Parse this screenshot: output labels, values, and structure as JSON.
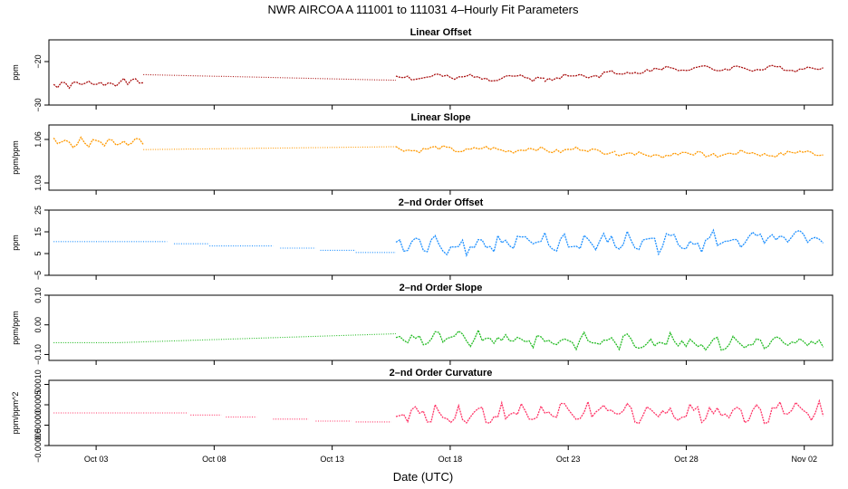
{
  "title": "NWR   AIRCOA A   111001 to 111031   4–Hourly Fit Parameters",
  "xlabel": "Date (UTC)",
  "x_ticks": [
    "Oct 03",
    "Oct 08",
    "Oct 13",
    "Oct 18",
    "Oct 23",
    "Oct 28",
    "Nov 02"
  ],
  "chart_data": [
    {
      "type": "line",
      "title": "Linear Offset",
      "ylabel": "ppm",
      "color": "#aa1111",
      "ylim": [
        -30,
        -15
      ],
      "yticks": [
        {
          "value": -30,
          "label": "−30"
        },
        {
          "value": -20,
          "label": "−20"
        }
      ],
      "x_start": "Oct 01",
      "step_days": 0.1667,
      "segments": [
        {
          "start_day": 0.2,
          "end_day": 4.0,
          "kind": "noisy",
          "start": -25.5,
          "end": -24.5,
          "base": -25.0,
          "amp": 1.0,
          "period": 0.25,
          "seed": 1
        },
        {
          "start_day": 4.0,
          "end_day": 14.7,
          "kind": "trend",
          "start": -23.0,
          "end": -24.3
        },
        {
          "start_day": 14.7,
          "end_day": 21.0,
          "kind": "noisy",
          "start": -24.0,
          "end": -24.0,
          "base": -23.6,
          "amp": 1.1,
          "period": 0.8,
          "seed": 2
        },
        {
          "start_day": 21.0,
          "end_day": 26.0,
          "kind": "noisy",
          "start": -24.0,
          "end": -22.0,
          "base": -23.0,
          "amp": 1.0,
          "period": 0.9,
          "seed": 3
        },
        {
          "start_day": 26.0,
          "end_day": 32.8,
          "kind": "noisy",
          "start": -21.5,
          "end": -21.5,
          "base": -21.6,
          "amp": 0.9,
          "period": 0.8,
          "seed": 4
        }
      ]
    },
    {
      "type": "line",
      "title": "Linear Slope",
      "ylabel": "ppm/ppm",
      "color": "#ff9900",
      "ylim": [
        1.025,
        1.07
      ],
      "yticks": [
        {
          "value": 1.03,
          "label": "1.03"
        },
        {
          "value": 1.06,
          "label": "1.06"
        }
      ],
      "x_start": "Oct 01",
      "step_days": 0.1667,
      "segments": [
        {
          "start_day": 0.2,
          "end_day": 4.0,
          "kind": "noisy",
          "start": 1.058,
          "end": 1.058,
          "base": 1.058,
          "amp": 0.004,
          "period": 0.3,
          "seed": 5
        },
        {
          "start_day": 4.0,
          "end_day": 14.7,
          "kind": "trend",
          "start": 1.053,
          "end": 1.055
        },
        {
          "start_day": 14.7,
          "end_day": 24.0,
          "kind": "noisy",
          "start": 1.054,
          "end": 1.053,
          "base": 1.053,
          "amp": 0.003,
          "period": 1.0,
          "seed": 6
        },
        {
          "start_day": 24.0,
          "end_day": 32.8,
          "kind": "noisy",
          "start": 1.051,
          "end": 1.052,
          "base": 1.05,
          "amp": 0.003,
          "period": 1.2,
          "seed": 7
        }
      ]
    },
    {
      "type": "line",
      "title": "2–nd Order Offset",
      "ylabel": "ppm",
      "color": "#1e90ff",
      "ylim": [
        -5,
        25
      ],
      "yticks": [
        {
          "value": -5,
          "label": "−5"
        },
        {
          "value": 5,
          "label": "5"
        },
        {
          "value": 15,
          "label": "15"
        },
        {
          "value": 25,
          "label": "25"
        }
      ],
      "x_start": "Oct 01",
      "step_days": 0.1667,
      "segments": [
        {
          "start_day": 0.2,
          "end_day": 5.0,
          "kind": "flat",
          "start": 10.5,
          "end": 10.5
        },
        {
          "start_day": 5.3,
          "end_day": 6.8,
          "kind": "flat",
          "start": 9.5,
          "end": 9.5
        },
        {
          "start_day": 6.8,
          "end_day": 9.5,
          "kind": "flat",
          "start": 8.5,
          "end": 8.5
        },
        {
          "start_day": 9.8,
          "end_day": 11.3,
          "kind": "flat",
          "start": 7.5,
          "end": 7.5
        },
        {
          "start_day": 11.5,
          "end_day": 13.0,
          "kind": "flat",
          "start": 6.5,
          "end": 6.5
        },
        {
          "start_day": 13.0,
          "end_day": 14.7,
          "kind": "flat",
          "start": 5.5,
          "end": 5.5
        },
        {
          "start_day": 14.7,
          "end_day": 32.8,
          "kind": "noisy",
          "start": 6.0,
          "end": 8.5,
          "base": 10.0,
          "amp": 6.5,
          "period": 0.45,
          "seed": 8
        }
      ]
    },
    {
      "type": "line",
      "title": "2–nd Order Slope",
      "ylabel": "ppm/ppm",
      "color": "#22bb22",
      "ylim": [
        -0.12,
        0.1
      ],
      "yticks": [
        {
          "value": -0.1,
          "label": "−0.10"
        },
        {
          "value": 0.0,
          "label": "0.00"
        },
        {
          "value": 0.1,
          "label": "0.10"
        }
      ],
      "x_start": "Oct 01",
      "step_days": 0.1667,
      "segments": [
        {
          "start_day": 0.2,
          "end_day": 3.0,
          "kind": "flat",
          "start": -0.06,
          "end": -0.06
        },
        {
          "start_day": 3.0,
          "end_day": 14.7,
          "kind": "trend",
          "start": -0.06,
          "end": -0.03
        },
        {
          "start_day": 14.7,
          "end_day": 32.8,
          "kind": "noisy",
          "start": -0.03,
          "end": -0.05,
          "base": -0.055,
          "amp": 0.035,
          "period": 0.45,
          "seed": 9
        }
      ]
    },
    {
      "type": "line",
      "title": "2–nd Order Curvature",
      "ylabel": "ppm/ppm^2",
      "color": "#ff3366",
      "ylim": [
        -5e-05,
        0.00011
      ],
      "yticks": [
        {
          "value": -5e-05,
          "label": "−0.00005"
        },
        {
          "value": 0.0,
          "label": "0.00000"
        },
        {
          "value": 5e-05,
          "label": "0.00005"
        },
        {
          "value": 0.0001,
          "label": "0.00010"
        }
      ],
      "x_start": "Oct 01",
      "step_days": 0.1667,
      "segments": [
        {
          "start_day": 0.2,
          "end_day": 4.0,
          "kind": "flat",
          "start": 3e-05,
          "end": 3e-05
        },
        {
          "start_day": 4.0,
          "end_day": 5.9,
          "kind": "flat",
          "start": 3e-05,
          "end": 3e-05
        },
        {
          "start_day": 6.0,
          "end_day": 7.3,
          "kind": "flat",
          "start": 2.5e-05,
          "end": 2.5e-05
        },
        {
          "start_day": 7.5,
          "end_day": 8.8,
          "kind": "flat",
          "start": 2e-05,
          "end": 2e-05
        },
        {
          "start_day": 9.5,
          "end_day": 11.0,
          "kind": "flat",
          "start": 1.5e-05,
          "end": 1.5e-05
        },
        {
          "start_day": 11.3,
          "end_day": 12.8,
          "kind": "flat",
          "start": 1e-05,
          "end": 1e-05
        },
        {
          "start_day": 13.0,
          "end_day": 14.5,
          "kind": "flat",
          "start": 8e-06,
          "end": 8e-06
        },
        {
          "start_day": 14.7,
          "end_day": 32.8,
          "kind": "noisy",
          "start": 1e-05,
          "end": 2e-05,
          "base": 3e-05,
          "amp": 3.5e-05,
          "period": 0.45,
          "seed": 10
        }
      ]
    }
  ]
}
